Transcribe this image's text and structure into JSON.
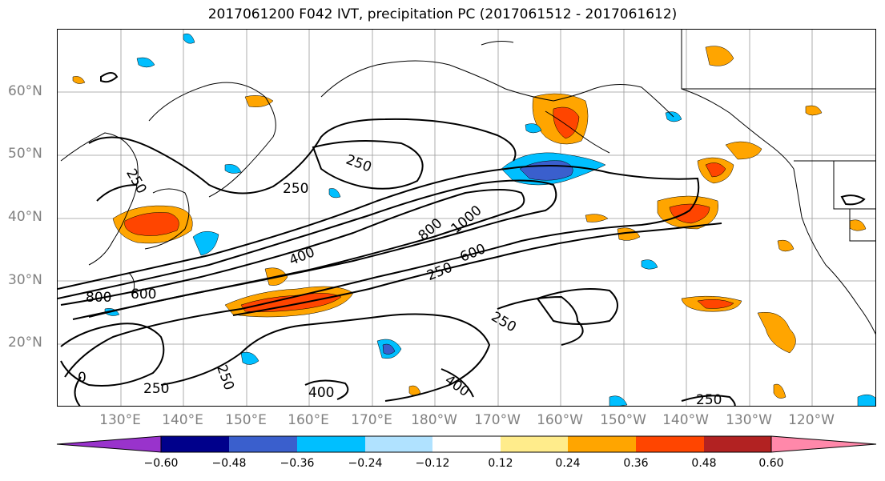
{
  "title": "2017061200 F042 IVT, precipitation PC (2017061512 - 2017061612)",
  "lat_labels": [
    "60°N",
    "50°N",
    "40°N",
    "30°N",
    "20°N"
  ],
  "lon_labels": [
    "130°E",
    "140°E",
    "150°E",
    "160°E",
    "170°E",
    "180°W",
    "170°W",
    "160°W",
    "150°W",
    "140°W",
    "130°W",
    "120°W"
  ],
  "contour_labels": [
    "250",
    "250",
    "250",
    "400",
    "800",
    "1000",
    "600",
    "250",
    "600",
    "800",
    "250",
    "250",
    "400",
    "400",
    "250",
    "250",
    "0"
  ],
  "colorbar": {
    "ticks": [
      "−0.60",
      "−0.48",
      "−0.36",
      "−0.24",
      "−0.12",
      "0.12",
      "0.24",
      "0.36",
      "0.48",
      "0.60"
    ],
    "colors": [
      "#9933cc",
      "#00008b",
      "#3a5fcd",
      "#00bfff",
      "#b0e2ff",
      "#ffffff",
      "#ffec8b",
      "#ffa500",
      "#ff4500",
      "#b22222",
      "#ff88aa"
    ]
  }
}
